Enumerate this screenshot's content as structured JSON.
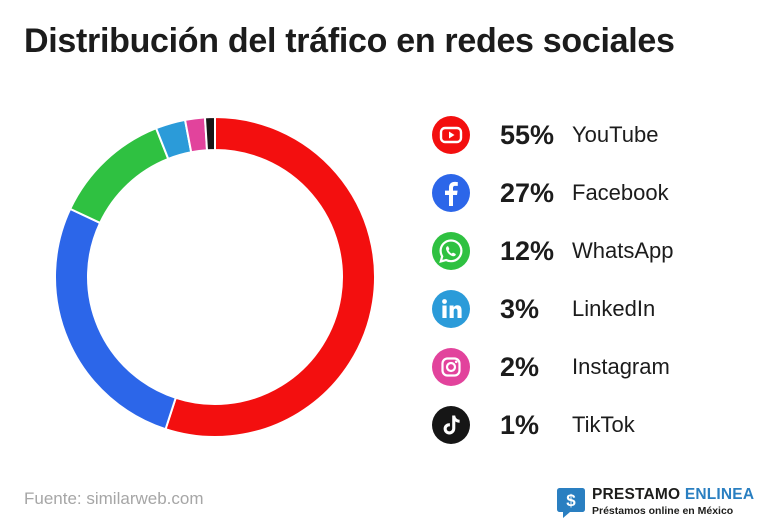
{
  "title": "Distribución del tráfico en redes sociales",
  "source": "Fuente: similarweb.com",
  "brand": {
    "name_part1": "PRESTAMO",
    "name_part2": "ENLINEA",
    "tagline": "Préstamos online en México"
  },
  "chart_data": {
    "type": "pie",
    "style": "donut",
    "title": "Distribución del tráfico en redes sociales",
    "legend_position": "right",
    "slices": [
      {
        "label": "YouTube",
        "value": 55,
        "value_label": "55%",
        "color": "#f30f0f",
        "icon": "youtube-icon"
      },
      {
        "label": "Facebook",
        "value": 27,
        "value_label": "27%",
        "color": "#2c66e9",
        "icon": "facebook-icon"
      },
      {
        "label": "WhatsApp",
        "value": 12,
        "value_label": "12%",
        "color": "#2fc141",
        "icon": "whatsapp-icon"
      },
      {
        "label": "LinkedIn",
        "value": 3,
        "value_label": "3%",
        "color": "#2b9bd9",
        "icon": "linkedin-icon"
      },
      {
        "label": "Instagram",
        "value": 2,
        "value_label": "2%",
        "color": "#e2439c",
        "icon": "instagram-icon"
      },
      {
        "label": "TikTok",
        "value": 1,
        "value_label": "1%",
        "color": "#161616",
        "icon": "tiktok-icon"
      }
    ]
  }
}
